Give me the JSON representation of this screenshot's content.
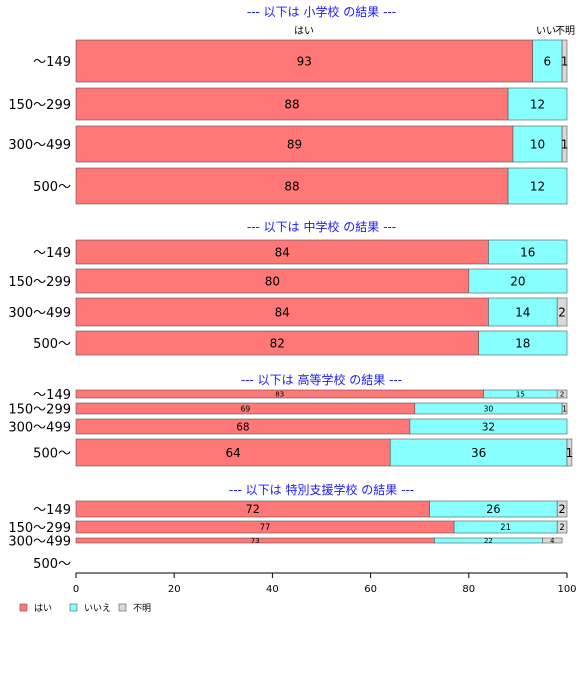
{
  "chart_data": {
    "type": "bar",
    "orientation": "horizontal",
    "stacked": true,
    "xlim": [
      0,
      100
    ],
    "x_ticks": [
      "0",
      "20",
      "40",
      "60",
      "80",
      "100"
    ],
    "legend": {
      "placement": "bottom-left",
      "entries": [
        "はい",
        "いいえ",
        "不明"
      ]
    },
    "series_colors": {
      "yes": "#ff7777",
      "no": "#88ffff",
      "unknown": "#d9d9d9"
    },
    "column_headers": [
      "はい",
      "いい",
      "不明"
    ],
    "sections": [
      {
        "title": "--- 以下は 小学校 の結果 ---",
        "rows": [
          {
            "category": "～149",
            "yes": 93,
            "no": 6,
            "unknown": 1
          },
          {
            "category": "150～299",
            "yes": 88,
            "no": 12,
            "unknown": 0
          },
          {
            "category": "300～499",
            "yes": 89,
            "no": 10,
            "unknown": 1
          },
          {
            "category": "500～",
            "yes": 88,
            "no": 12,
            "unknown": 0
          }
        ]
      },
      {
        "title": "--- 以下は 中学校 の結果 ---",
        "rows": [
          {
            "category": "～149",
            "yes": 84,
            "no": 16,
            "unknown": 0
          },
          {
            "category": "150～299",
            "yes": 80,
            "no": 20,
            "unknown": 0
          },
          {
            "category": "300～499",
            "yes": 84,
            "no": 14,
            "unknown": 2
          },
          {
            "category": "500～",
            "yes": 82,
            "no": 18,
            "unknown": 0
          }
        ]
      },
      {
        "title": "--- 以下は 高等学校 の結果 ---",
        "rows": [
          {
            "category": "～149",
            "yes": 83,
            "no": 15,
            "unknown": 2
          },
          {
            "category": "150～299",
            "yes": 69,
            "no": 30,
            "unknown": 1
          },
          {
            "category": "300～499",
            "yes": 68,
            "no": 32,
            "unknown": 0
          },
          {
            "category": "500～",
            "yes": 64,
            "no": 36,
            "unknown": 1
          }
        ]
      },
      {
        "title": "--- 以下は 特別支援学校 の結果 ---",
        "rows": [
          {
            "category": "～149",
            "yes": 72,
            "no": 26,
            "unknown": 2
          },
          {
            "category": "150～299",
            "yes": 77,
            "no": 21,
            "unknown": 2
          },
          {
            "category": "300～499",
            "yes": 73,
            "no": 22,
            "unknown": 4
          },
          {
            "category": "500～",
            "yes": null,
            "no": null,
            "unknown": null
          }
        ]
      }
    ]
  }
}
